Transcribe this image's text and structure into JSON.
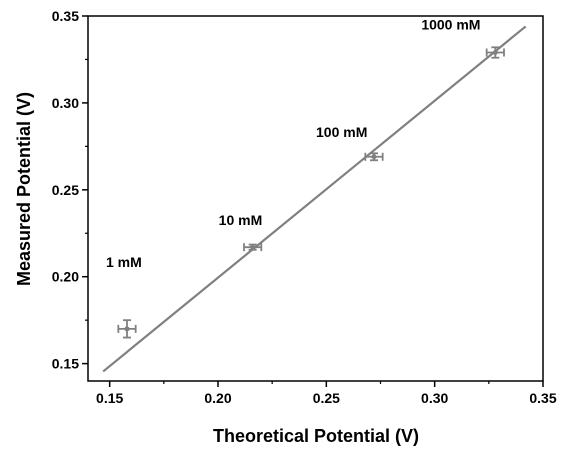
{
  "chart_data": {
    "type": "scatter",
    "title": "",
    "xlabel": "Theoretical Potential (V)",
    "ylabel": "Measured Potential (V)",
    "xlim": [
      0.14,
      0.35
    ],
    "ylim": [
      0.14,
      0.35
    ],
    "x_ticks": [
      "0.15",
      "0.20",
      "0.25",
      "0.30",
      "0.35"
    ],
    "y_ticks": [
      "0.15",
      "0.20",
      "0.25",
      "0.30",
      "0.35"
    ],
    "grid": false,
    "colors": {
      "points": "#808080",
      "fit_line": "#808080",
      "axes": "#000000"
    },
    "points": [
      {
        "label": "1 mM",
        "x": 0.158,
        "y": 0.17,
        "x_err": 0.004,
        "y_err": 0.005
      },
      {
        "label": "10 mM",
        "x": 0.216,
        "y": 0.217,
        "x_err": 0.004,
        "y_err": 0.0015
      },
      {
        "label": "100 mM",
        "x": 0.272,
        "y": 0.269,
        "x_err": 0.004,
        "y_err": 0.002
      },
      {
        "label": "1000 mM",
        "x": 0.328,
        "y": 0.329,
        "x_err": 0.004,
        "y_err": 0.003
      }
    ],
    "fit_line": {
      "x": [
        0.147,
        0.342
      ],
      "y": [
        0.1455,
        0.344
      ]
    }
  }
}
